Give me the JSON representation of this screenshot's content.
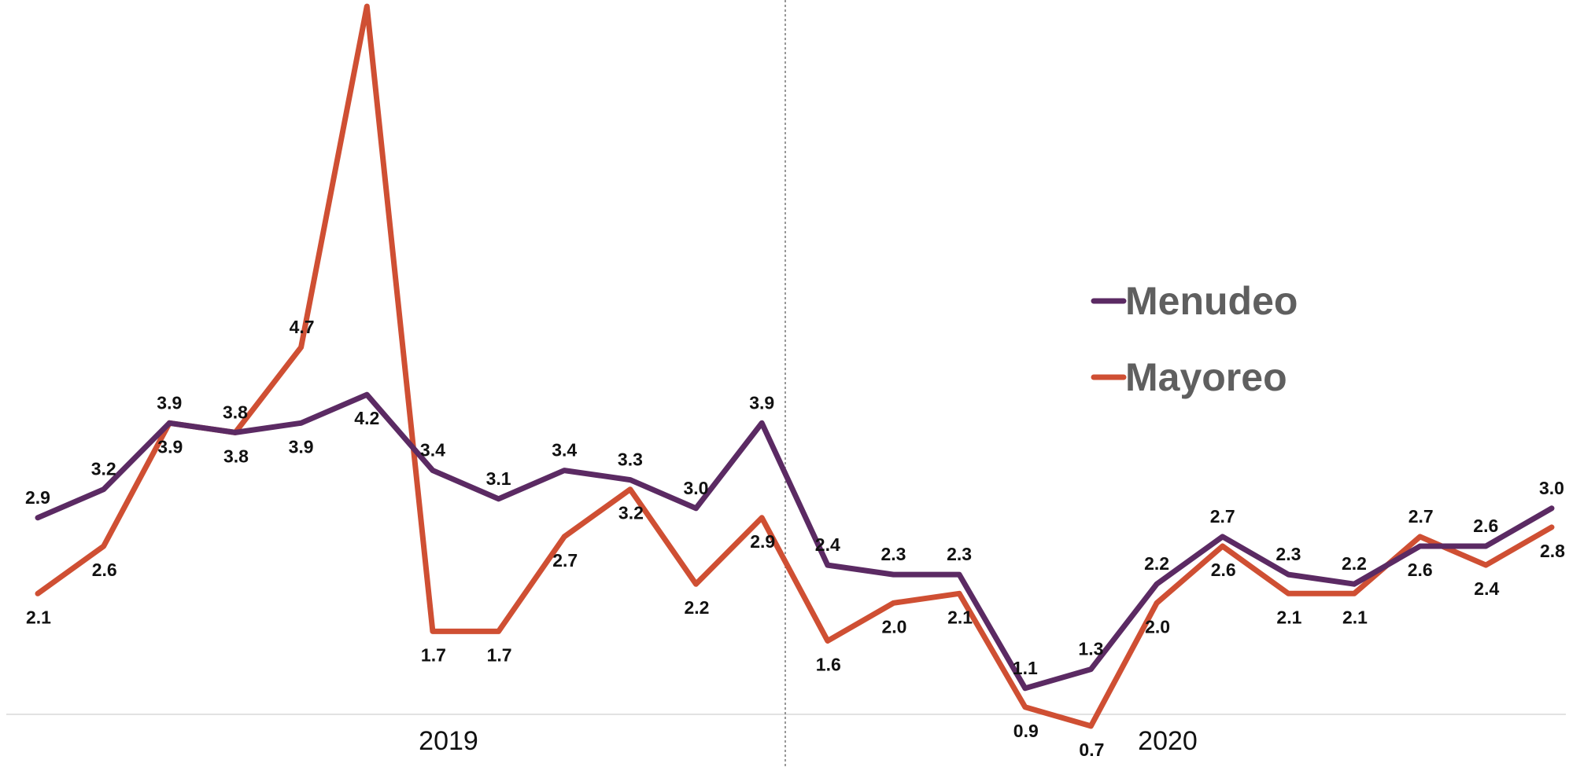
{
  "chart_data": {
    "type": "line",
    "x_groups": [
      {
        "label": "2019",
        "count": 12
      },
      {
        "label": "2020",
        "count": 12
      }
    ],
    "series": [
      {
        "name": "Menudeo",
        "color": "#5b2a63",
        "values": [
          2.9,
          3.2,
          3.9,
          3.8,
          3.9,
          4.2,
          3.4,
          3.1,
          3.4,
          3.3,
          3.0,
          3.9,
          2.4,
          2.3,
          2.3,
          1.1,
          1.3,
          2.2,
          2.7,
          2.3,
          2.2,
          2.6,
          2.6,
          3.0
        ],
        "labels": [
          "2.9",
          "3.2",
          "3.9",
          "3.8",
          "3.9",
          "4.2",
          "3.4",
          "3.1",
          "3.4",
          "3.3",
          "3.0",
          "3.9",
          "2.4",
          "2.3",
          "2.3",
          "1.1",
          "1.3",
          "2.2",
          "2.7",
          "2.3",
          "2.2",
          "2.6",
          "2.6",
          "3.0"
        ]
      },
      {
        "name": "Mayoreo",
        "color": "#cf4f33",
        "values": [
          2.1,
          2.6,
          3.9,
          3.8,
          4.7,
          8.3,
          1.7,
          1.7,
          2.7,
          3.2,
          2.2,
          2.9,
          1.6,
          2.0,
          2.1,
          0.9,
          0.7,
          2.0,
          2.6,
          2.1,
          2.1,
          2.7,
          2.4,
          2.8
        ],
        "labels": [
          "2.1",
          "2.6",
          "3.9",
          "3.8",
          "4.7",
          "8.3",
          "1.7",
          "1.7",
          "2.7",
          "3.2",
          "2.2",
          "2.9",
          "1.6",
          "2.0",
          "2.1",
          "0.9",
          "0.7",
          "2.0",
          "2.6",
          "2.1",
          "2.1",
          "2.7",
          "2.4",
          "2.8"
        ]
      }
    ],
    "ylim": [
      0,
      8.6
    ],
    "legend": {
      "placement": "right",
      "entries": [
        "Menudeo",
        "Mayoreo"
      ]
    },
    "grid": false,
    "title": "",
    "xlabel": "",
    "ylabel": ""
  }
}
